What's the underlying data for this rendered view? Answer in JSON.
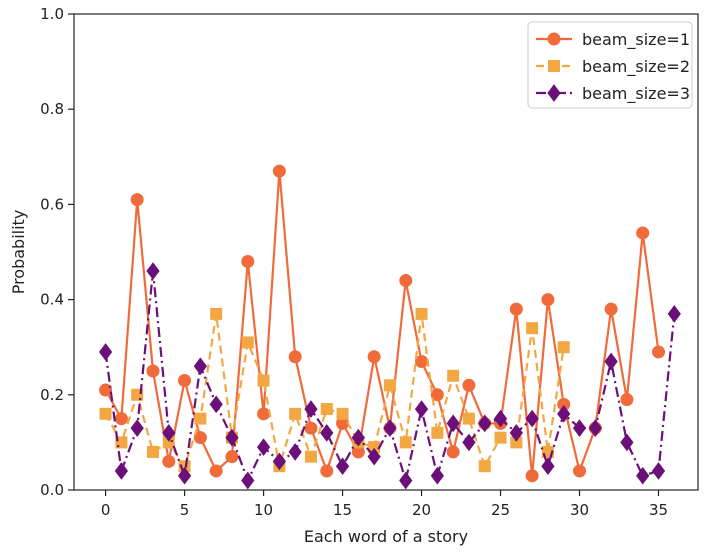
{
  "chart_data": {
    "type": "line",
    "title": "",
    "xlabel": "Each word of a story",
    "ylabel": "Probability",
    "xlim": [
      -2,
      37.5
    ],
    "ylim": [
      0.0,
      1.0
    ],
    "xticks": [
      0,
      5,
      10,
      15,
      20,
      25,
      30,
      35
    ],
    "yticks": [
      0.0,
      0.2,
      0.4,
      0.6,
      0.8,
      1.0
    ],
    "xtick_labels": [
      "0",
      "5",
      "10",
      "15",
      "20",
      "25",
      "30",
      "35"
    ],
    "ytick_labels": [
      "0.0",
      "0.2",
      "0.4",
      "0.6",
      "0.8",
      "1.0"
    ],
    "grid": false,
    "legend_position": "top-right",
    "series": [
      {
        "name": "beam_size=1",
        "color": "#f06a3a",
        "line_style": "solid",
        "marker": "circle",
        "x": [
          0,
          1,
          2,
          3,
          4,
          5,
          6,
          7,
          8,
          9,
          10,
          11,
          12,
          13,
          14,
          15,
          16,
          17,
          18,
          19,
          20,
          21,
          22,
          23,
          24,
          25,
          26,
          27,
          28,
          29,
          30,
          31,
          32,
          33,
          34,
          35
        ],
        "y": [
          0.21,
          0.15,
          0.61,
          0.25,
          0.06,
          0.23,
          0.11,
          0.04,
          0.07,
          0.48,
          0.16,
          0.67,
          0.28,
          0.13,
          0.04,
          0.14,
          0.08,
          0.28,
          0.13,
          0.44,
          0.27,
          0.2,
          0.08,
          0.22,
          0.14,
          0.14,
          0.38,
          0.03,
          0.4,
          0.18,
          0.04,
          0.13,
          0.38,
          0.19,
          0.54,
          0.29
        ]
      },
      {
        "name": "beam_size=2",
        "color": "#f2a743",
        "line_style": "dashed",
        "marker": "square",
        "x": [
          0,
          1,
          2,
          3,
          4,
          5,
          6,
          7,
          8,
          9,
          10,
          11,
          12,
          13,
          14,
          15,
          16,
          17,
          18,
          19,
          20,
          21,
          22,
          23,
          24,
          25,
          26,
          27,
          28,
          29
        ],
        "y": [
          0.16,
          0.1,
          0.2,
          0.08,
          0.1,
          0.05,
          0.15,
          0.37,
          0.11,
          0.31,
          0.23,
          0.05,
          0.16,
          0.07,
          0.17,
          0.16,
          0.1,
          0.09,
          0.22,
          0.1,
          0.37,
          0.12,
          0.24,
          0.15,
          0.05,
          0.11,
          0.1,
          0.34,
          0.08,
          0.3
        ]
      },
      {
        "name": "beam_size=3",
        "color": "#6a1078",
        "line_style": "dashdot",
        "marker": "diamond",
        "x": [
          0,
          1,
          2,
          3,
          4,
          5,
          6,
          7,
          8,
          9,
          10,
          11,
          12,
          13,
          14,
          15,
          16,
          17,
          18,
          19,
          20,
          21,
          22,
          23,
          24,
          25,
          26,
          27,
          28,
          29,
          30,
          31,
          32,
          33,
          34,
          35,
          36
        ],
        "y": [
          0.29,
          0.04,
          0.13,
          0.46,
          0.12,
          0.03,
          0.26,
          0.18,
          0.11,
          0.02,
          0.09,
          0.06,
          0.08,
          0.17,
          0.12,
          0.05,
          0.11,
          0.07,
          0.13,
          0.02,
          0.17,
          0.03,
          0.14,
          0.1,
          0.14,
          0.15,
          0.12,
          0.15,
          0.05,
          0.16,
          0.13,
          0.13,
          0.27,
          0.1,
          0.03,
          0.04,
          0.37
        ]
      }
    ]
  }
}
